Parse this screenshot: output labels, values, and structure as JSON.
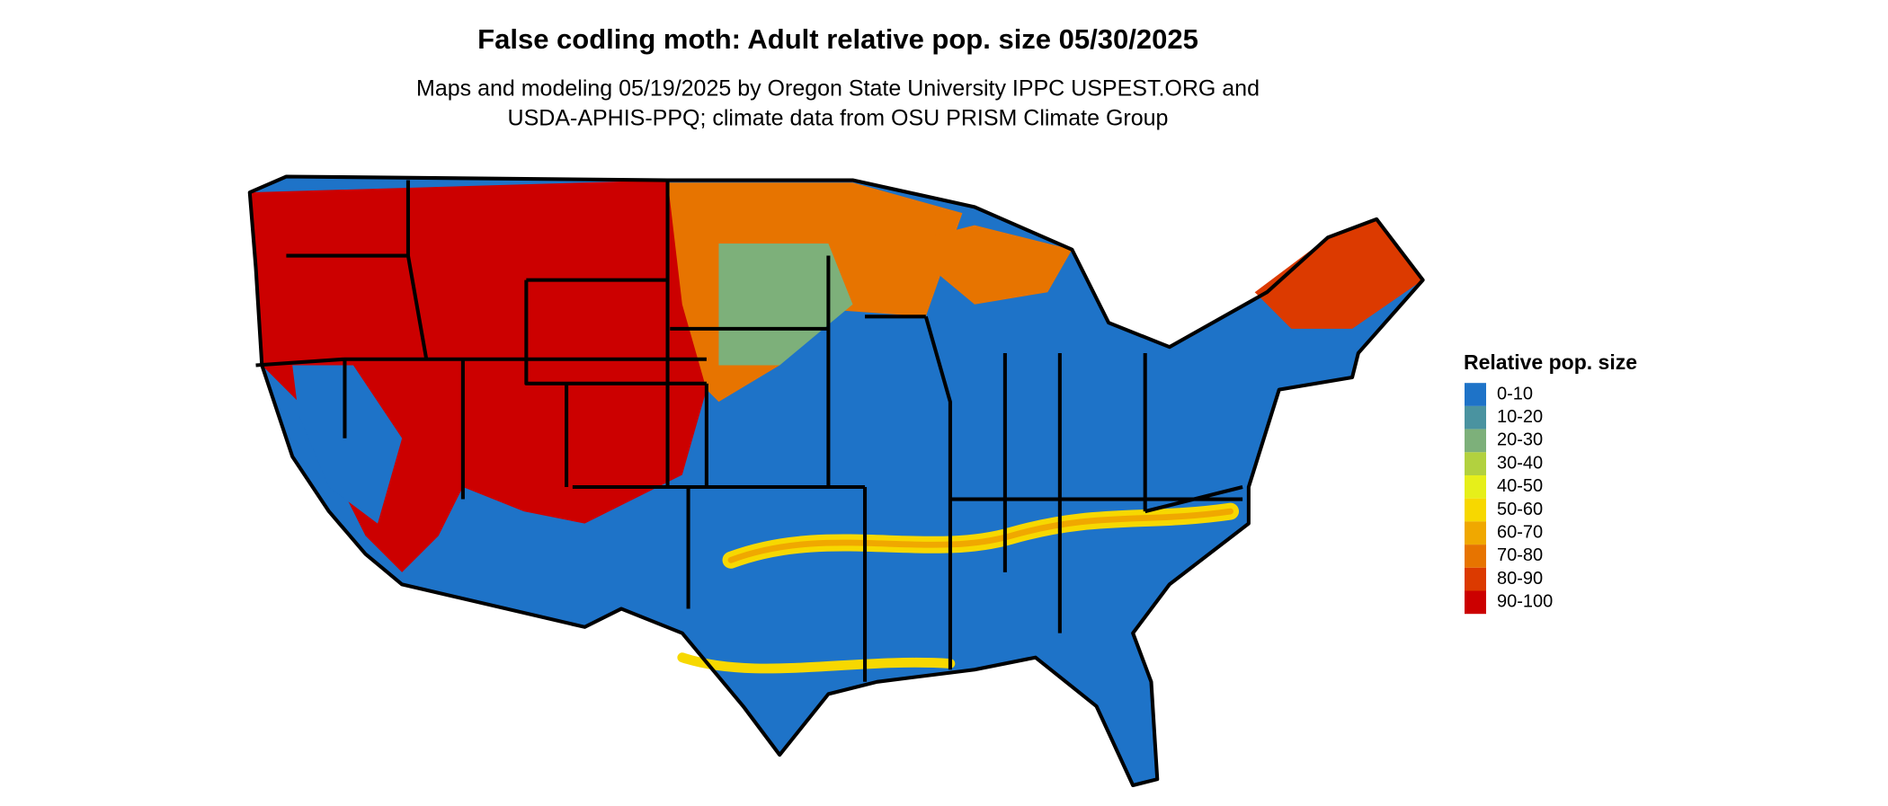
{
  "title": "False codling moth: Adult relative pop. size 05/30/2025",
  "subtitle": [
    "Maps and modeling 05/19/2025 by Oregon State University IPPC USPEST.ORG and",
    "USDA-APHIS-PPQ; climate data from OSU PRISM Climate Group"
  ],
  "legend": {
    "title": "Relative pop. size",
    "items": [
      {
        "label": "0-10",
        "color": "#1e73c8"
      },
      {
        "label": "10-20",
        "color": "#4a93a0"
      },
      {
        "label": "20-30",
        "color": "#7db07a"
      },
      {
        "label": "30-40",
        "color": "#b2d13f"
      },
      {
        "label": "40-50",
        "color": "#e6ef1a"
      },
      {
        "label": "50-60",
        "color": "#f7d800"
      },
      {
        "label": "60-70",
        "color": "#f0a800"
      },
      {
        "label": "70-80",
        "color": "#e77400"
      },
      {
        "label": "80-90",
        "color": "#dc3a00"
      },
      {
        "label": "90-100",
        "color": "#cc0000"
      }
    ]
  }
}
